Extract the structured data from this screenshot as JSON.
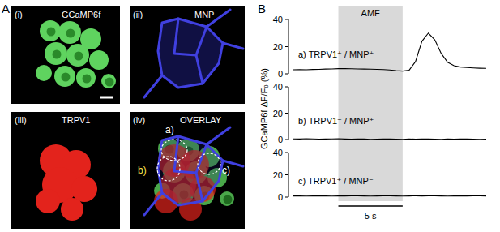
{
  "figure": {
    "panel_labels": {
      "a": "A",
      "b": "B"
    },
    "images": [
      {
        "label": "(i)",
        "title": "GCaMP6f"
      },
      {
        "label": "(ii)",
        "title": "MNP"
      },
      {
        "label": "(iii)",
        "title": "TRPV1"
      },
      {
        "label": "(iv)",
        "title": "OVERLAY"
      }
    ],
    "overlay_labels": [
      "a)",
      "b)",
      "c)"
    ]
  },
  "panel_b": {
    "y_label": "GCaMP6f ΔF/F₀ (%)",
    "stimulus": {
      "label": "AMF",
      "start": 3.5,
      "end": 8.5
    },
    "scale_bar": {
      "label": "5 s",
      "length": 5
    }
  },
  "chart_data": [
    {
      "type": "line",
      "tick_labels": "y",
      "x": [
        0,
        0.5,
        1,
        1.5,
        2,
        2.5,
        3,
        3.5,
        4,
        4.5,
        5,
        5.5,
        6,
        6.5,
        7,
        7.5,
        8,
        8.5,
        9,
        9.5,
        10,
        10.5,
        11,
        11.5,
        12,
        12.5,
        13,
        13.5,
        14,
        14.5,
        15
      ],
      "series": [
        {
          "name": "a) TRPV1⁺ / MNP⁺",
          "color": "#000000",
          "values": [
            3.0,
            3.1,
            3.0,
            3.2,
            3.3,
            3.5,
            3.6,
            3.8,
            3.8,
            3.7,
            3.6,
            3.5,
            3.4,
            3.3,
            3.1,
            2.8,
            2.3,
            2.0,
            2.6,
            9.0,
            24.0,
            30.0,
            25.0,
            15.0,
            8.5,
            6.0,
            5.0,
            4.6,
            4.3,
            4.1,
            4.0
          ]
        }
      ],
      "xlim": [
        0,
        15
      ],
      "ylim": [
        0,
        40
      ],
      "yticks": [
        0,
        20,
        40
      ]
    },
    {
      "type": "line",
      "tick_labels": "y",
      "x": [
        0,
        0.5,
        1,
        1.5,
        2,
        2.5,
        3,
        3.5,
        4,
        4.5,
        5,
        5.5,
        6,
        6.5,
        7,
        7.5,
        8,
        8.5,
        9,
        9.5,
        10,
        10.5,
        11,
        11.5,
        12,
        12.5,
        13,
        13.5,
        14,
        14.5,
        15
      ],
      "series": [
        {
          "name": "b) TRPV1⁻ / MNP⁺",
          "color": "#000000",
          "values": [
            0.5,
            0.4,
            0.6,
            0.5,
            0.3,
            0.4,
            0.5,
            0.6,
            0.4,
            0.3,
            0.5,
            0.4,
            0.2,
            0.3,
            0.4,
            0.5,
            0.3,
            0.2,
            0.4,
            0.3,
            0.5,
            0.4,
            0.3,
            0.2,
            0.4,
            0.3,
            0.5,
            0.4,
            0.3,
            0.2,
            0.3
          ]
        }
      ],
      "xlim": [
        0,
        15
      ],
      "ylim": [
        0,
        40
      ],
      "yticks": [
        0,
        20,
        40
      ]
    },
    {
      "type": "line",
      "tick_labels": "y",
      "x": [
        0,
        0.5,
        1,
        1.5,
        2,
        2.5,
        3,
        3.5,
        4,
        4.5,
        5,
        5.5,
        6,
        6.5,
        7,
        7.5,
        8,
        8.5,
        9,
        9.5,
        10,
        10.5,
        11,
        11.5,
        12,
        12.5,
        13,
        13.5,
        14,
        14.5,
        15
      ],
      "series": [
        {
          "name": "c) TRPV1⁺ / MNP⁻",
          "color": "#000000",
          "values": [
            1.0,
            1.1,
            0.9,
            1.0,
            1.2,
            1.0,
            0.9,
            1.1,
            1.0,
            1.2,
            1.1,
            1.0,
            0.9,
            1.0,
            1.1,
            1.2,
            1.0,
            0.9,
            1.0,
            1.1,
            1.0,
            1.2,
            1.1,
            1.0,
            0.9,
            1.0,
            1.1,
            1.0,
            1.2,
            1.1,
            1.0
          ]
        }
      ],
      "xlim": [
        0,
        15
      ],
      "ylim": [
        0,
        40
      ],
      "yticks": [
        0,
        20,
        40
      ]
    }
  ]
}
